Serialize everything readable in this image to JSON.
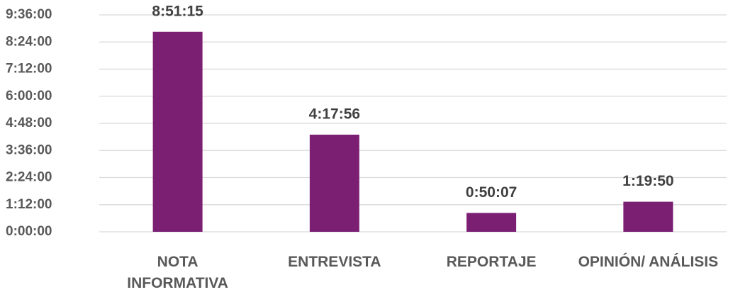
{
  "chart_data": {
    "type": "bar",
    "categories": [
      "NOTA INFORMATIVA",
      "ENTREVISTA",
      "REPORTAJE",
      "OPINIÓN/ ANÁLISIS"
    ],
    "values": [
      31875,
      15476,
      3007,
      4790
    ],
    "value_labels": [
      "8:51:15",
      "4:17:56",
      "0:50:07",
      "1:19:50"
    ],
    "color": "#7b1f73",
    "ylim": [
      0,
      34560
    ],
    "yticks": [
      {
        "value": 0,
        "label": "0:00:00"
      },
      {
        "value": 4320,
        "label": "1:12:00"
      },
      {
        "value": 8640,
        "label": "2:24:00"
      },
      {
        "value": 12960,
        "label": "3:36:00"
      },
      {
        "value": 17280,
        "label": "4:48:00"
      },
      {
        "value": 21600,
        "label": "6:00:00"
      },
      {
        "value": 25920,
        "label": "7:12:00"
      },
      {
        "value": 30240,
        "label": "8:24:00"
      },
      {
        "value": 34560,
        "label": "9:36:00"
      }
    ],
    "grid": true
  }
}
